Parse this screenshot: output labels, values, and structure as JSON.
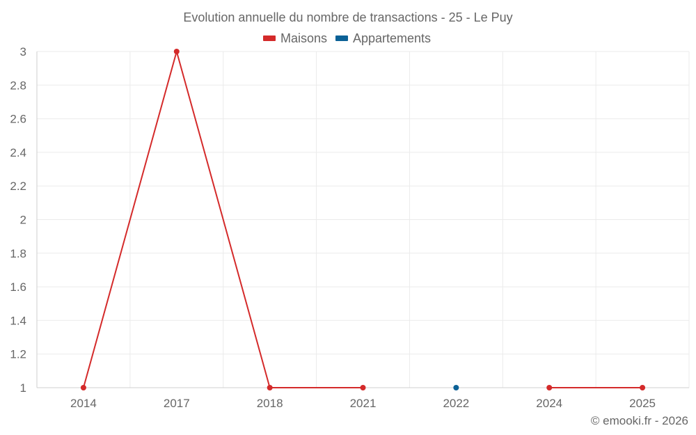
{
  "chart_data": {
    "type": "line",
    "title": "Evolution annuelle du nombre de transactions - 25 - Le Puy",
    "categories": [
      "2014",
      "2017",
      "2018",
      "2021",
      "2022",
      "2024",
      "2025"
    ],
    "series": [
      {
        "name": "Maisons",
        "color": "#d42a2a",
        "values": [
          1,
          3,
          1,
          1,
          null,
          1,
          1
        ]
      },
      {
        "name": "Appartements",
        "color": "#0b6196",
        "values": [
          null,
          null,
          null,
          null,
          1,
          null,
          null
        ]
      }
    ],
    "ylim": [
      1,
      3
    ],
    "yticks": [
      "1",
      "1.2",
      "1.4",
      "1.6",
      "1.8",
      "2",
      "2.2",
      "2.4",
      "2.6",
      "2.8",
      "3"
    ],
    "xlabel": "",
    "ylabel": "",
    "grid": true,
    "legend_position": "top-center"
  },
  "credit": "© emooki.fr - 2026"
}
